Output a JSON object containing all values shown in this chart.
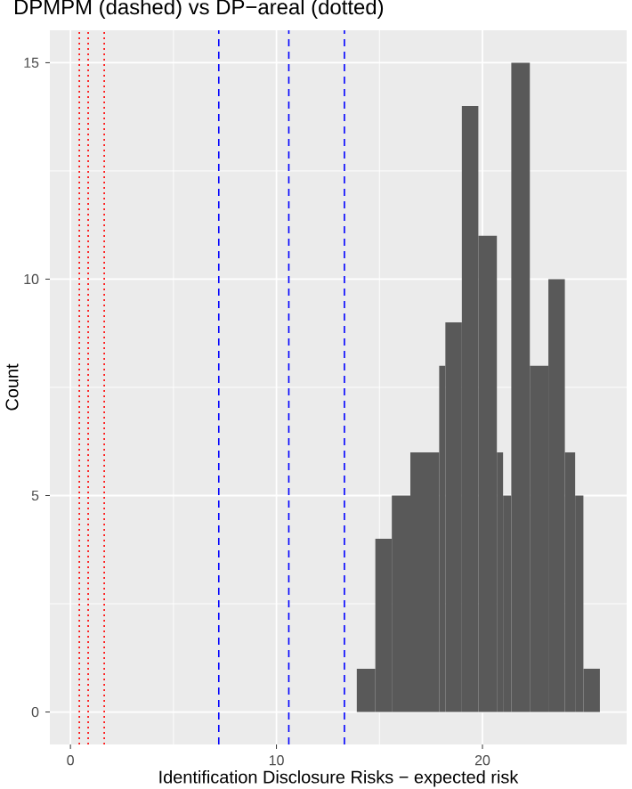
{
  "chart_data": {
    "type": "histogram",
    "title": "DPMPM (dashed) vs DP−areal (dotted)",
    "xlabel": "Identification Disclosure Risks − expected risk",
    "ylabel": "Count",
    "bins": [
      13.9,
      14.8,
      15.6,
      16.5,
      17.9,
      18.2,
      19.0,
      19.8,
      20.7,
      21.0,
      21.4,
      22.3,
      23.2,
      24.0,
      24.5,
      24.9,
      25.7
    ],
    "values": [
      1,
      4,
      5,
      6,
      8,
      9,
      14,
      11,
      6,
      5,
      15,
      8,
      10,
      6,
      5,
      1
    ],
    "color": "#595959",
    "xlim": [
      -1.0,
      27.0
    ],
    "ylim": [
      -0.75,
      15.75
    ],
    "xticks": [
      0,
      10,
      20
    ],
    "yticks": [
      0,
      5,
      10,
      15
    ],
    "grid": true,
    "ref_lines": [
      {
        "axis": "x",
        "value": 0.43,
        "color": "#ff0000",
        "line_style": "dotted"
      },
      {
        "axis": "x",
        "value": 0.86,
        "color": "#ff0000",
        "line_style": "dotted"
      },
      {
        "axis": "x",
        "value": 1.64,
        "color": "#ff0000",
        "line_style": "dotted"
      },
      {
        "axis": "x",
        "value": 7.2,
        "color": "#0000ff",
        "line_style": "dashed"
      },
      {
        "axis": "x",
        "value": 10.6,
        "color": "#0000ff",
        "line_style": "dashed"
      },
      {
        "axis": "x",
        "value": 13.3,
        "color": "#0000ff",
        "line_style": "dashed"
      }
    ]
  }
}
